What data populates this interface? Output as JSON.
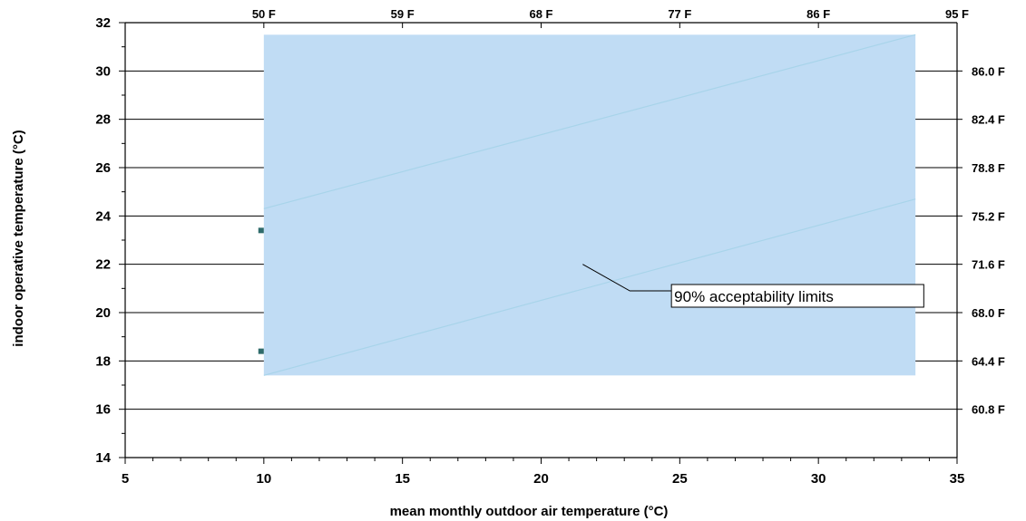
{
  "chart_data": {
    "type": "area",
    "xlabel": "mean monthly outdoor air temperature (°C)",
    "ylabel": "indoor operative temperature (°C)",
    "xlim": [
      5,
      35
    ],
    "ylim": [
      14,
      32
    ],
    "x_ticks": [
      5,
      10,
      15,
      20,
      25,
      30,
      35
    ],
    "y_ticks": [
      14,
      16,
      18,
      20,
      22,
      24,
      26,
      28,
      30,
      32
    ],
    "top_axis_ticks": [
      {
        "label": "50 F",
        "x": 10
      },
      {
        "label": "59 F",
        "x": 15
      },
      {
        "label": "68 F",
        "x": 20
      },
      {
        "label": "77 F",
        "x": 25
      },
      {
        "label": "86 F",
        "x": 30
      },
      {
        "label": "95 F",
        "x": 35
      }
    ],
    "right_axis_ticks": [
      {
        "label": "86.0 F",
        "y": 30
      },
      {
        "label": "82.4 F",
        "y": 28
      },
      {
        "label": "78.8 F",
        "y": 26
      },
      {
        "label": "75.2 F",
        "y": 24
      },
      {
        "label": "71.6 F",
        "y": 22
      },
      {
        "label": "68.0 F",
        "y": 20
      },
      {
        "label": "64.4 F",
        "y": 18
      },
      {
        "label": "60.8 F",
        "y": 16
      }
    ],
    "shaded_region": {
      "x": [
        10,
        33.5
      ],
      "y": [
        17.4,
        31.5
      ],
      "color": "#c0dcf4"
    },
    "series": [
      {
        "values": [
          [
            10,
            24.3
          ],
          [
            33.5,
            31.5
          ]
        ],
        "color": "#a8d4ea"
      },
      {
        "values": [
          [
            10,
            17.4
          ],
          [
            33.5,
            24.7
          ]
        ],
        "color": "#a8d4ea"
      }
    ],
    "markers": [
      [
        9.9,
        23.4
      ],
      [
        9.9,
        18.4
      ]
    ],
    "marker_color": "#2f6b6b",
    "grid": "horizontal",
    "annotation": {
      "text": "90% acceptability limits",
      "point": [
        21.5,
        22.0
      ],
      "elbow": [
        23.2,
        20.9
      ],
      "box_x": [
        24.7,
        33.8
      ],
      "box_y": [
        20.9,
        20.1
      ]
    }
  }
}
